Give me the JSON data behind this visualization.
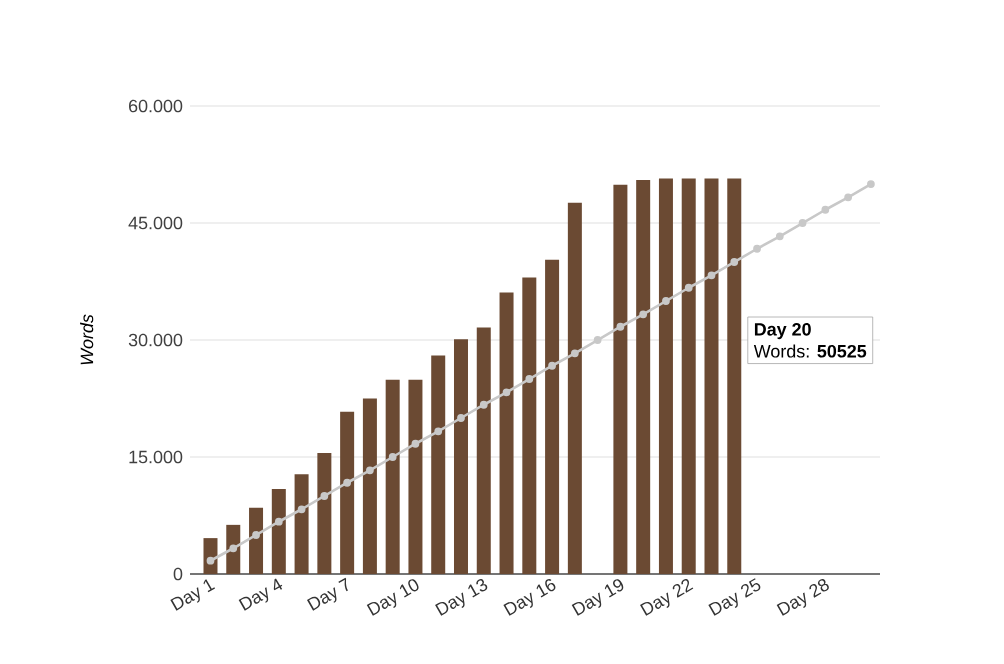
{
  "chart_data": {
    "type": "bar",
    "ylabel": "Words",
    "categories": [
      "Day 1",
      null,
      null,
      "Day 4",
      null,
      null,
      "Day 7",
      null,
      null,
      "Day 10",
      null,
      null,
      "Day 13",
      null,
      null,
      "Day 16",
      null,
      null,
      "Day 19",
      null,
      null,
      "Day 22",
      null,
      null,
      "Day 25",
      null,
      null,
      "Day 28",
      null,
      null
    ],
    "series": [
      {
        "color": "#6b4a33",
        "values": [
          4600,
          6300,
          8500,
          10900,
          12800,
          15500,
          20800,
          22500,
          24900,
          24900,
          28000,
          30100,
          31600,
          36100,
          38000,
          40300,
          47600,
          null,
          49900,
          50525,
          50700,
          50700,
          50700,
          50700,
          null,
          null,
          null,
          null,
          null,
          null
        ]
      },
      {
        "type": "line",
        "color": "#c8c8c8",
        "marker": "circle",
        "values": [
          1700,
          3300,
          5000,
          6700,
          8300,
          10000,
          11700,
          13300,
          15000,
          16700,
          18300,
          20000,
          21700,
          23300,
          25000,
          26700,
          28300,
          30000,
          31700,
          33300,
          35000,
          36700,
          38300,
          40000,
          41700,
          43300,
          45000,
          46700,
          48300,
          50000
        ]
      }
    ],
    "ylim": [
      0,
      60000
    ],
    "yticks": [
      0,
      {
        "value": 15000,
        "label": "15.000"
      },
      {
        "value": 30000,
        "label": "30.000"
      },
      {
        "value": 45000,
        "label": "45.000"
      },
      {
        "value": 60000,
        "label": "60.000"
      }
    ],
    "grid": "y",
    "annotations": [
      "**Day 20**",
      "Words: **50525**"
    ]
  }
}
